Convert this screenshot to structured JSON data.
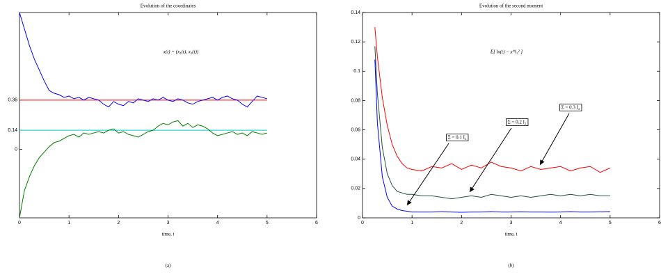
{
  "chart_data": [
    {
      "type": "line",
      "title": "Evolution of the coordinates",
      "xlabel": "time, t",
      "caption": "(a)",
      "annotations": [
        "x(t) = (x₁(t), x₂(t))"
      ],
      "xlim": [
        0,
        6
      ],
      "xticks": [
        0,
        1,
        2,
        3,
        4,
        5,
        6
      ],
      "ylim": [
        -0.5,
        1.0
      ],
      "yticks": [
        0.36,
        0.14,
        0
      ],
      "x": [
        0,
        0.1,
        0.2,
        0.3,
        0.4,
        0.5,
        0.6,
        0.7,
        0.8,
        0.9,
        1.0,
        1.1,
        1.2,
        1.3,
        1.4,
        1.5,
        1.6,
        1.7,
        1.8,
        1.9,
        2.0,
        2.1,
        2.2,
        2.3,
        2.4,
        2.5,
        2.6,
        2.7,
        2.8,
        2.9,
        3.0,
        3.1,
        3.2,
        3.3,
        3.4,
        3.5,
        3.6,
        3.7,
        3.8,
        3.9,
        4.0,
        4.1,
        4.2,
        4.3,
        4.4,
        4.5,
        4.6,
        4.7,
        4.8,
        4.9,
        5.0
      ],
      "series": [
        {
          "color": "#0000ff",
          "values": [
            1.0,
            0.88,
            0.76,
            0.66,
            0.58,
            0.5,
            0.43,
            0.41,
            0.4,
            0.38,
            0.39,
            0.37,
            0.38,
            0.36,
            0.38,
            0.37,
            0.36,
            0.33,
            0.31,
            0.35,
            0.33,
            0.32,
            0.35,
            0.34,
            0.37,
            0.36,
            0.35,
            0.37,
            0.36,
            0.38,
            0.36,
            0.35,
            0.37,
            0.36,
            0.34,
            0.33,
            0.35,
            0.36,
            0.37,
            0.38,
            0.36,
            0.38,
            0.39,
            0.37,
            0.36,
            0.33,
            0.31,
            0.35,
            0.39,
            0.38,
            0.37
          ]
        },
        {
          "color": "#007f00",
          "values": [
            -0.5,
            -0.3,
            -0.2,
            -0.12,
            -0.06,
            -0.02,
            0.02,
            0.05,
            0.06,
            0.08,
            0.1,
            0.11,
            0.09,
            0.12,
            0.11,
            0.12,
            0.13,
            0.12,
            0.14,
            0.15,
            0.12,
            0.13,
            0.11,
            0.1,
            0.09,
            0.11,
            0.13,
            0.14,
            0.17,
            0.19,
            0.18,
            0.2,
            0.21,
            0.17,
            0.19,
            0.16,
            0.18,
            0.17,
            0.15,
            0.12,
            0.1,
            0.11,
            0.12,
            0.13,
            0.11,
            0.12,
            0.1,
            0.13,
            0.12,
            0.11,
            0.12
          ]
        }
      ],
      "reference_lines": [
        {
          "value": 0.36,
          "color": "#ff0000"
        },
        {
          "value": 0.14,
          "color": "#00cccc"
        }
      ]
    },
    {
      "type": "line",
      "title": "Evolution of the second moment",
      "xlabel": "time, t",
      "caption": "(b)",
      "annotations": [
        "E[ ‖x(t) − x*‖₂² ]",
        "Σ = 0.1 I₂",
        "Σ = 0.2 I₂",
        "Σ = 0.3 I₂"
      ],
      "xlim": [
        0,
        6
      ],
      "xticks": [
        0,
        1,
        2,
        3,
        4,
        5,
        6
      ],
      "ylim": [
        0,
        0.14
      ],
      "yticks": [
        0,
        0.02,
        0.04,
        0.06,
        0.08,
        0.1,
        0.12,
        0.14
      ],
      "x": [
        0.25,
        0.3,
        0.4,
        0.5,
        0.6,
        0.7,
        0.8,
        0.9,
        1.0,
        1.2,
        1.4,
        1.6,
        1.8,
        2.0,
        2.2,
        2.4,
        2.6,
        2.8,
        3.0,
        3.2,
        3.4,
        3.6,
        3.8,
        4.0,
        4.2,
        4.4,
        4.6,
        4.8,
        5.0
      ],
      "series": [
        {
          "color": "#ff0000",
          "values": [
            0.13,
            0.11,
            0.082,
            0.063,
            0.05,
            0.042,
            0.037,
            0.034,
            0.033,
            0.032,
            0.035,
            0.034,
            0.037,
            0.033,
            0.036,
            0.034,
            0.038,
            0.035,
            0.034,
            0.032,
            0.035,
            0.033,
            0.034,
            0.035,
            0.032,
            0.034,
            0.035,
            0.031,
            0.034
          ]
        },
        {
          "color": "#1f4f3f",
          "values": [
            0.117,
            0.085,
            0.048,
            0.03,
            0.022,
            0.018,
            0.017,
            0.016,
            0.016,
            0.015,
            0.015,
            0.014,
            0.013,
            0.014,
            0.015,
            0.014,
            0.016,
            0.015,
            0.014,
            0.015,
            0.014,
            0.015,
            0.016,
            0.015,
            0.016,
            0.015,
            0.016,
            0.015,
            0.015
          ]
        },
        {
          "color": "#0000ff",
          "values": [
            0.108,
            0.065,
            0.028,
            0.014,
            0.008,
            0.006,
            0.005,
            0.0045,
            0.004,
            0.004,
            0.004,
            0.0042,
            0.004,
            0.0038,
            0.004,
            0.004,
            0.0042,
            0.004,
            0.004,
            0.0041,
            0.004,
            0.004,
            0.0039,
            0.004,
            0.0042,
            0.004,
            0.004,
            0.0041,
            0.0043
          ]
        }
      ]
    }
  ]
}
